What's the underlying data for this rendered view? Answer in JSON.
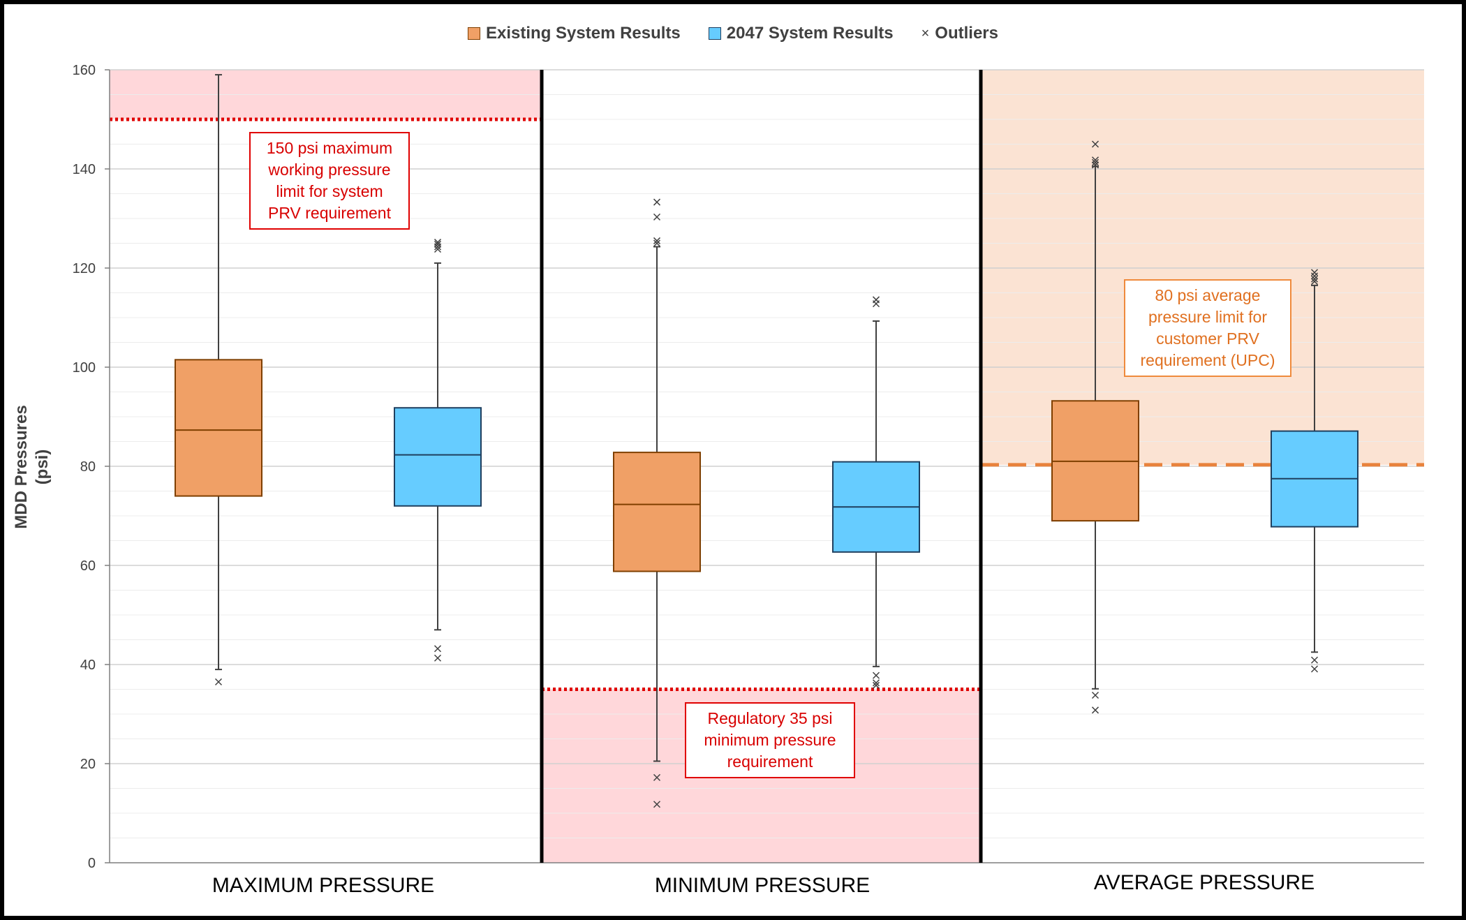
{
  "chart_data": {
    "type": "boxplot",
    "ylabel": "MDD Pressures (psi)",
    "ylabel_lines": [
      "MDD Pressures",
      "(psi)"
    ],
    "ylim": [
      0,
      160
    ],
    "yticks": [
      0,
      20,
      40,
      60,
      80,
      100,
      120,
      140,
      160
    ],
    "legend": {
      "existing": "Existing System Results",
      "future": "2047 System Results",
      "outliers": "Outliers",
      "outlier_symbol": "×"
    },
    "colors": {
      "existing": "#f0a066",
      "future": "#66ccff",
      "existing_border": "#7f3f00",
      "future_border": "#1f3f5f",
      "red_zone": "#ffd7da",
      "orange_zone": "#fbe3d3",
      "red_line": "#e00000",
      "orange_line": "#e8823c"
    },
    "panels": [
      {
        "label": "MAXIMUM PRESSURE",
        "boxes": [
          {
            "series": "Existing System Results",
            "min": 39,
            "q1": 74,
            "median": 87.3,
            "q3": 101.5,
            "max": 159,
            "outliers": [
              36.5
            ]
          },
          {
            "series": "2047 System Results",
            "min": 47,
            "q1": 72,
            "median": 82.3,
            "q3": 91.8,
            "max": 121,
            "outliers": [
              41.3,
              43.2,
              123.8,
              124.3,
              124.8,
              125.2
            ]
          }
        ]
      },
      {
        "label": "MINIMUM PRESSURE",
        "boxes": [
          {
            "series": "Existing System Results",
            "min": 20.5,
            "q1": 58.8,
            "median": 72.3,
            "q3": 82.8,
            "max": 124.3,
            "outliers": [
              11.8,
              17.2,
              125,
              125.5,
              130.3,
              133.3
            ]
          },
          {
            "series": "2047 System Results",
            "min": 39.6,
            "q1": 62.7,
            "median": 71.8,
            "q3": 80.9,
            "max": 109.3,
            "outliers": [
              35.8,
              36.3,
              37.8,
              112.8,
              113.6
            ]
          }
        ]
      },
      {
        "label": "AVERAGE PRESSURE",
        "boxes": [
          {
            "series": "Existing System Results",
            "min": 35.1,
            "q1": 69,
            "median": 81,
            "q3": 93.2,
            "max": 140.5,
            "outliers": [
              30.8,
              33.8,
              140.8,
              141.3,
              141.8,
              145
            ]
          },
          {
            "series": "2047 System Results",
            "min": 42.5,
            "q1": 67.8,
            "median": 77.5,
            "q3": 87.1,
            "max": 116.5,
            "outliers": [
              39.1,
              40.9,
              117.3,
              117.8,
              118.4,
              119.1
            ]
          }
        ]
      }
    ],
    "thresholds": [
      {
        "panel": 0,
        "value": 150,
        "style": "dotted-red",
        "zone": "above"
      },
      {
        "panel": 1,
        "value": 35,
        "style": "dotted-red",
        "zone": "below"
      },
      {
        "panel": 2,
        "value": 80.3,
        "style": "dashed-orange",
        "zone": "above"
      }
    ],
    "annotations": [
      {
        "panel": 0,
        "lines": [
          "150 psi maximum",
          "working pressure",
          "limit for system",
          "PRV requirement"
        ]
      },
      {
        "panel": 1,
        "lines": [
          "Regulatory 35 psi",
          "minimum pressure",
          "requirement"
        ]
      },
      {
        "panel": 2,
        "lines": [
          "80 psi average",
          "pressure limit for",
          "customer PRV",
          "requirement (UPC)"
        ]
      }
    ]
  }
}
